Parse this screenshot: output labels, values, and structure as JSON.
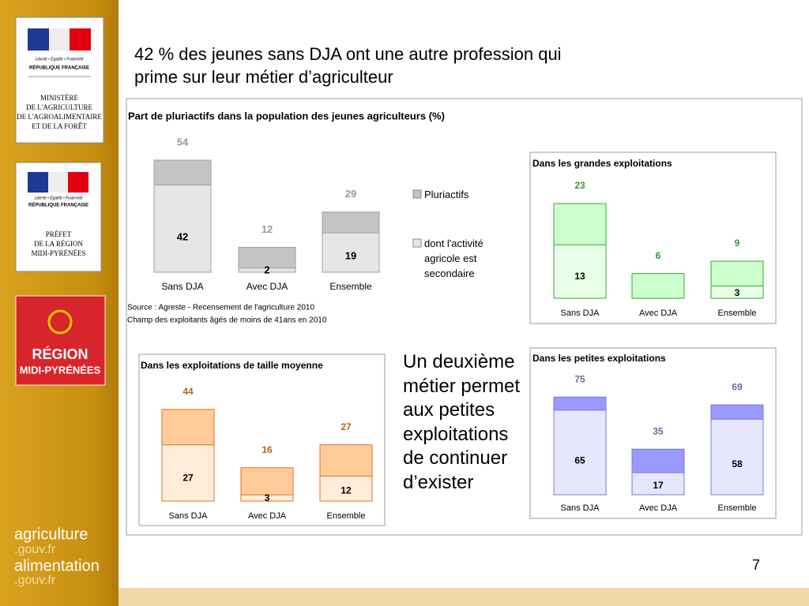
{
  "sidebar": {
    "motto": "Liberté • Égalité • Fraternité",
    "republic": "RÉPUBLIQUE FRANÇAISE",
    "ministry": [
      "MINISTÈRE",
      "DE L'AGRICULTURE",
      "DE L'AGROALIMENTAIRE",
      "ET DE LA FORÊT"
    ],
    "prefect": [
      "PRÉFET",
      "DE LA RÉGION",
      "MIDI-PYRÉNÉES"
    ],
    "region": [
      "RÉGION",
      "MIDI-PYRÉNÉES"
    ],
    "sites": [
      "agriculture",
      ".gouv.fr",
      "alimentation",
      ".gouv.fr"
    ]
  },
  "slide": {
    "title": "42 % des jeunes sans DJA ont une autre profession qui prime sur leur métier d’agriculteur",
    "side_text": "Un deuxième métier permet aux petites exploitations de continuer d’exister",
    "sources": [
      "Source : Agreste - Recensement de l'agriculture 2010",
      "Champ des exploitants âgés de moins de 41ans en 2010"
    ],
    "page_number": "7"
  },
  "chart_data": [
    {
      "type": "bar",
      "title": "Part de pluriactifs dans la population des jeunes agriculteurs (%)",
      "categories": [
        "Sans DJA",
        "Avec DJA",
        "Ensemble"
      ],
      "series": [
        {
          "name": "Pluriactifs",
          "color": "#c4c4c4",
          "values": [
            54,
            12,
            29
          ]
        },
        {
          "name": "dont l'activité agricole est secondaire",
          "color": "#e6e6e6",
          "values": [
            42,
            2,
            19
          ]
        }
      ],
      "label_color": "#9a9a9a",
      "edge_color": "#a0a0a0",
      "legend": true
    },
    {
      "type": "bar",
      "title": "Dans les grandes exploitations",
      "categories": [
        "Sans DJA",
        "Avec DJA",
        "Ensemble"
      ],
      "series": [
        {
          "color": "#ccffcc",
          "values": [
            23,
            6,
            9
          ]
        },
        {
          "color": "#e8ffe8",
          "values": [
            13,
            null,
            3
          ]
        }
      ],
      "label_color": "#339933",
      "edge_color": "#33aa33"
    },
    {
      "type": "bar",
      "title": "Dans les exploitations de taille moyenne",
      "categories": [
        "Sans DJA",
        "Avec DJA",
        "Ensemble"
      ],
      "series": [
        {
          "color": "#ffcc99",
          "values": [
            44,
            16,
            27
          ]
        },
        {
          "color": "#ffecd9",
          "values": [
            27,
            3,
            12
          ]
        }
      ],
      "label_color": "#c0601a",
      "edge_color": "#e07020"
    },
    {
      "type": "bar",
      "title": "Dans les petites exploitations",
      "categories": [
        "Sans DJA",
        "Avec DJA",
        "Ensemble"
      ],
      "series": [
        {
          "color": "#9999ff",
          "values": [
            75,
            35,
            69
          ]
        },
        {
          "color": "#e6e6ff",
          "values": [
            65,
            17,
            58
          ]
        }
      ],
      "label_color": "#6a6aa8",
      "edge_color": "#7777dd"
    }
  ]
}
